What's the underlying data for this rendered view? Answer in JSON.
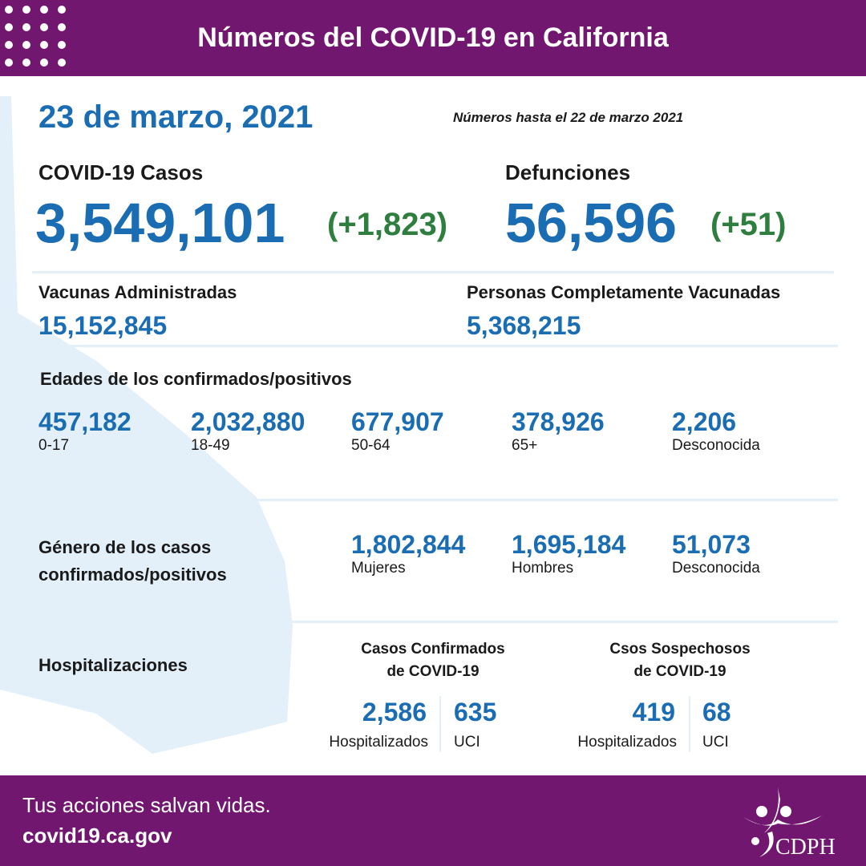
{
  "header": {
    "title": "Números del COVID-19 en California"
  },
  "date": "23 de marzo, 2021",
  "note": "Números hasta el 22 de marzo 2021",
  "cases": {
    "label": "COVID-19 Casos",
    "value": "3,549,101",
    "change": "(+1,823)"
  },
  "deaths": {
    "label": "Defunciones",
    "value": "56,596",
    "change": "(+51)"
  },
  "vaccines": {
    "label": "Vacunas Administradas",
    "value": "15,152,845"
  },
  "fully_vaccinated": {
    "label": "Personas Completamente Vacunadas",
    "value": "5,368,215"
  },
  "ages": {
    "label": "Edades de los confirmados/positivos",
    "items": [
      {
        "value": "457,182",
        "label": "0-17"
      },
      {
        "value": "2,032,880",
        "label": "18-49"
      },
      {
        "value": "677,907",
        "label": "50-64"
      },
      {
        "value": "378,926",
        "label": "65+"
      },
      {
        "value": "2,206",
        "label": "Desconocida"
      }
    ]
  },
  "gender": {
    "label_line1": "Género de los casos",
    "label_line2": "confirmados/positivos",
    "items": [
      {
        "value": "1,802,844",
        "label": "Mujeres"
      },
      {
        "value": "1,695,184",
        "label": "Hombres"
      },
      {
        "value": "51,073",
        "label": "Desconocida"
      }
    ]
  },
  "hospital": {
    "label": "Hospitalizaciones",
    "confirmed": {
      "title_line1": "Casos Confirmados",
      "title_line2": "de COVID-19",
      "hosp_value": "2,586",
      "hosp_label": "Hospitalizados",
      "icu_value": "635",
      "icu_label": "UCI"
    },
    "suspected": {
      "title_line1": "Csos Sospechosos",
      "title_line2": "de COVID-19",
      "hosp_value": "419",
      "hosp_label": "Hospitalizados",
      "icu_value": "68",
      "icu_label": "UCI"
    }
  },
  "footer": {
    "tagline": "Tus acciones salvan vidas.",
    "url": "covid19.ca.gov",
    "logo_text": "CDPH"
  },
  "colors": {
    "purple": "#72176f",
    "blue": "#1b6db3",
    "green": "#2e7f3f",
    "map": "#e3f0fa"
  }
}
